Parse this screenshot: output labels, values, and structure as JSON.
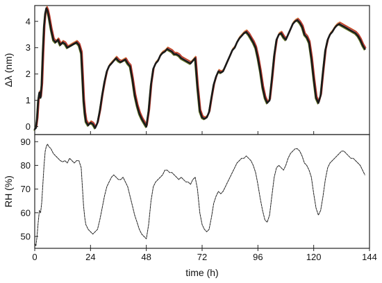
{
  "chart_data": [
    {
      "type": "line",
      "panel": "top",
      "title": "",
      "xlabel": "",
      "ylabel": "Δλ (nm)",
      "xlim": [
        0,
        144
      ],
      "ylim": [
        -0.3,
        4.6
      ],
      "x_ticks": [
        0,
        24,
        48,
        72,
        96,
        120,
        144
      ],
      "y_ticks": [
        0,
        1,
        2,
        3,
        4
      ],
      "y_tick_labels": [
        "0",
        "1",
        "2",
        "3",
        "4"
      ],
      "grid": false,
      "series_colors": [
        "#1a1a1a",
        "#c0392b",
        "#6b7d2a",
        "#d98a4a"
      ],
      "series": [
        {
          "x": [
            0,
            0.5,
            1,
            1.5,
            2,
            2.5,
            3,
            3.5,
            4,
            4.5,
            5,
            5.5,
            6,
            7,
            8,
            9,
            10,
            11,
            12,
            13,
            14,
            15,
            16,
            17,
            18,
            19,
            20,
            20.5,
            21,
            21.5,
            22,
            23,
            24,
            25,
            26,
            27,
            28,
            29,
            30,
            31,
            32,
            33,
            34,
            35,
            36,
            37,
            38,
            39,
            40,
            41,
            42,
            43,
            44,
            45,
            46,
            47,
            48,
            49,
            50,
            51,
            52,
            53,
            54,
            55,
            56,
            57,
            58,
            59,
            60,
            61,
            62,
            63,
            64,
            65,
            66,
            67,
            68,
            69,
            70,
            71,
            72,
            73,
            74,
            75,
            76,
            77,
            78,
            79,
            80,
            81,
            82,
            83,
            84,
            85,
            86,
            87,
            88,
            89,
            90,
            91,
            92,
            93,
            94,
            95,
            96,
            97,
            98,
            99,
            100,
            101,
            102,
            103,
            104,
            105,
            106,
            107,
            108,
            109,
            110,
            111,
            112,
            113,
            114,
            115,
            116,
            117,
            118,
            119,
            120,
            121,
            122,
            123,
            124,
            125,
            126,
            127,
            128,
            129,
            130,
            131,
            132,
            133,
            134,
            135,
            136,
            137,
            138,
            139,
            140,
            141,
            142
          ],
          "y": [
            -0.1,
            -0.05,
            0.3,
            1.0,
            1.3,
            1.1,
            1.6,
            2.8,
            3.8,
            4.3,
            4.5,
            4.4,
            4.2,
            3.7,
            3.3,
            3.2,
            3.3,
            3.1,
            3.2,
            3.15,
            3.0,
            3.05,
            3.1,
            3.15,
            3.2,
            3.1,
            2.8,
            1.9,
            1.0,
            0.5,
            0.2,
            0.05,
            0.15,
            0.1,
            -0.05,
            0.15,
            0.6,
            1.2,
            1.7,
            2.1,
            2.3,
            2.4,
            2.5,
            2.6,
            2.5,
            2.45,
            2.5,
            2.55,
            2.4,
            2.3,
            1.8,
            1.2,
            0.8,
            0.5,
            0.3,
            0.15,
            0.0,
            0.6,
            1.6,
            2.2,
            2.4,
            2.5,
            2.7,
            2.8,
            2.85,
            2.95,
            2.9,
            2.85,
            2.75,
            2.75,
            2.7,
            2.6,
            2.55,
            2.5,
            2.45,
            2.4,
            2.5,
            2.6,
            1.5,
            0.6,
            0.35,
            0.3,
            0.35,
            0.55,
            1.1,
            1.6,
            1.9,
            2.1,
            2.05,
            2.1,
            2.3,
            2.5,
            2.7,
            2.9,
            3.0,
            3.2,
            3.35,
            3.45,
            3.55,
            3.6,
            3.5,
            3.35,
            3.2,
            3.0,
            2.6,
            2.1,
            1.5,
            1.1,
            0.9,
            1.0,
            1.8,
            2.7,
            3.3,
            3.5,
            3.55,
            3.4,
            3.3,
            3.5,
            3.7,
            3.9,
            4.0,
            4.05,
            3.95,
            3.8,
            3.5,
            3.4,
            3.2,
            2.6,
            1.8,
            1.1,
            0.9,
            1.2,
            2.1,
            2.9,
            3.3,
            3.5,
            3.6,
            3.75,
            3.85,
            3.9,
            3.85,
            3.8,
            3.75,
            3.7,
            3.65,
            3.6,
            3.55,
            3.45,
            3.3,
            3.1,
            2.95
          ]
        }
      ]
    },
    {
      "type": "line",
      "panel": "bottom",
      "title": "",
      "xlabel": "time (h)",
      "ylabel": "RH (%)",
      "xlim": [
        0,
        144
      ],
      "ylim": [
        45,
        93
      ],
      "x_ticks": [
        0,
        24,
        48,
        72,
        96,
        120,
        144
      ],
      "x_tick_labels": [
        "0",
        "24",
        "48",
        "72",
        "96",
        "120",
        "144"
      ],
      "y_ticks": [
        50,
        60,
        70,
        80,
        90
      ],
      "y_tick_labels": [
        "50",
        "60",
        "70",
        "80",
        "90"
      ],
      "grid": false,
      "series_colors": [
        "#222222"
      ],
      "series": [
        {
          "x": [
            0,
            0.5,
            1,
            1.5,
            2,
            2.5,
            3,
            3.5,
            4,
            4.5,
            5,
            5.5,
            6,
            7,
            8,
            9,
            10,
            11,
            12,
            13,
            14,
            15,
            16,
            17,
            18,
            19,
            20,
            20.5,
            21,
            21.5,
            22,
            23,
            24,
            25,
            26,
            27,
            28,
            29,
            30,
            31,
            32,
            33,
            34,
            35,
            36,
            37,
            38,
            39,
            40,
            41,
            42,
            43,
            44,
            45,
            46,
            47,
            48,
            49,
            50,
            51,
            52,
            53,
            54,
            55,
            56,
            57,
            58,
            59,
            60,
            61,
            62,
            63,
            64,
            65,
            66,
            67,
            68,
            69,
            70,
            71,
            72,
            73,
            74,
            75,
            76,
            77,
            78,
            79,
            80,
            81,
            82,
            83,
            84,
            85,
            86,
            87,
            88,
            89,
            90,
            91,
            92,
            93,
            94,
            95,
            96,
            97,
            98,
            99,
            100,
            101,
            102,
            103,
            104,
            105,
            106,
            107,
            108,
            109,
            110,
            111,
            112,
            113,
            114,
            115,
            116,
            117,
            118,
            119,
            120,
            121,
            122,
            123,
            124,
            125,
            126,
            127,
            128,
            129,
            130,
            131,
            132,
            133,
            134,
            135,
            136,
            137,
            138,
            139,
            140,
            141,
            142
          ],
          "y": [
            47,
            46,
            50,
            56,
            61,
            60,
            64,
            72,
            80,
            86,
            88,
            89,
            88,
            87,
            85,
            84,
            83,
            82,
            81.5,
            82,
            81,
            83,
            82,
            81,
            82,
            82,
            79,
            71,
            63,
            58,
            55,
            53,
            52,
            51,
            52,
            53,
            57,
            62,
            67,
            71,
            73,
            75,
            76,
            75,
            74,
            74,
            75,
            73,
            71,
            67,
            63,
            59,
            56,
            53,
            51,
            50,
            49,
            55,
            65,
            71,
            73,
            74,
            75,
            76,
            78,
            78,
            77,
            77,
            76,
            75,
            74,
            75,
            74,
            73,
            73,
            72,
            74,
            75,
            70,
            60,
            55,
            53,
            52,
            53,
            58,
            64,
            67,
            69,
            68,
            69,
            71,
            73,
            75,
            77,
            79,
            81,
            82,
            83,
            83,
            84,
            83,
            82,
            80,
            77,
            72,
            66,
            61,
            57,
            56,
            59,
            67,
            75,
            79,
            80,
            79,
            78,
            80,
            83,
            85,
            86,
            87,
            87,
            86,
            84,
            81,
            80,
            78,
            75,
            68,
            62,
            59,
            61,
            67,
            74,
            79,
            81,
            82,
            83,
            84,
            85,
            86,
            86,
            85,
            84,
            83,
            83,
            82,
            81,
            80,
            78,
            76
          ]
        }
      ]
    }
  ]
}
